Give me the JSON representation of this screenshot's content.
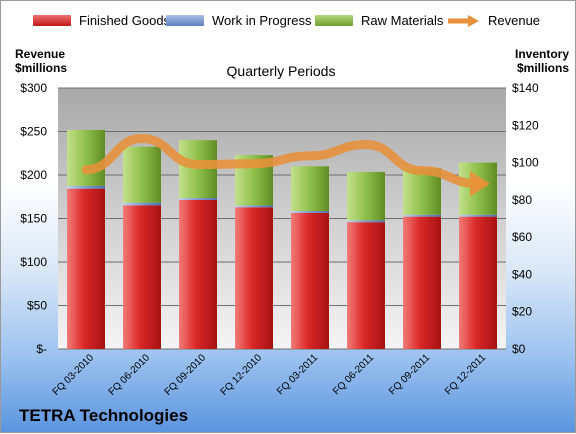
{
  "company": "TETRA Technologies",
  "chart_data": {
    "type": "bar",
    "subtype": "stacked bar with line overlay, dual axis",
    "title": "Quarterly Periods",
    "categories": [
      "FQ 03-2010",
      "FQ 06-2010",
      "FQ 09-2010",
      "FQ 12-2010",
      "FQ 03-2011",
      "FQ 06-2011",
      "FQ 09-2011",
      "FQ 12-2011"
    ],
    "series": [
      {
        "name": "Finished Goods",
        "axis": "right",
        "kind": "bar",
        "color": "#d9262b",
        "values": [
          86,
          77,
          80,
          76,
          73,
          68,
          71,
          71
        ]
      },
      {
        "name": "Work in Progress",
        "axis": "right",
        "kind": "bar",
        "color": "#7a9ad0",
        "values": [
          1.5,
          1.5,
          1,
          1,
          1,
          1,
          1,
          1
        ]
      },
      {
        "name": "Raw Materials",
        "axis": "right",
        "kind": "bar",
        "color": "#8fbf4a",
        "values": [
          30,
          30,
          31,
          27,
          24,
          26,
          25,
          28
        ]
      },
      {
        "name": "Revenue",
        "axis": "left",
        "kind": "line",
        "color": "#e8913a",
        "values": [
          206,
          242,
          212,
          213,
          222,
          235,
          205,
          190
        ]
      }
    ],
    "left_axis": {
      "label_line1": "Revenue",
      "label_line2": "$millions",
      "ylim": [
        0,
        300
      ],
      "ticks": [
        "$-",
        "$50",
        "$100",
        "$150",
        "$200",
        "$250",
        "$300"
      ],
      "tick_values": [
        0,
        50,
        100,
        150,
        200,
        250,
        300
      ]
    },
    "right_axis": {
      "label_line1": "Inventory",
      "label_line2": "$millions",
      "ylim": [
        0,
        140
      ],
      "ticks": [
        "$0",
        "$20",
        "$40",
        "$60",
        "$80",
        "$100",
        "$120",
        "$140"
      ],
      "tick_values": [
        0,
        20,
        40,
        60,
        80,
        100,
        120,
        140
      ]
    },
    "grid": true,
    "legend_position": "top"
  }
}
